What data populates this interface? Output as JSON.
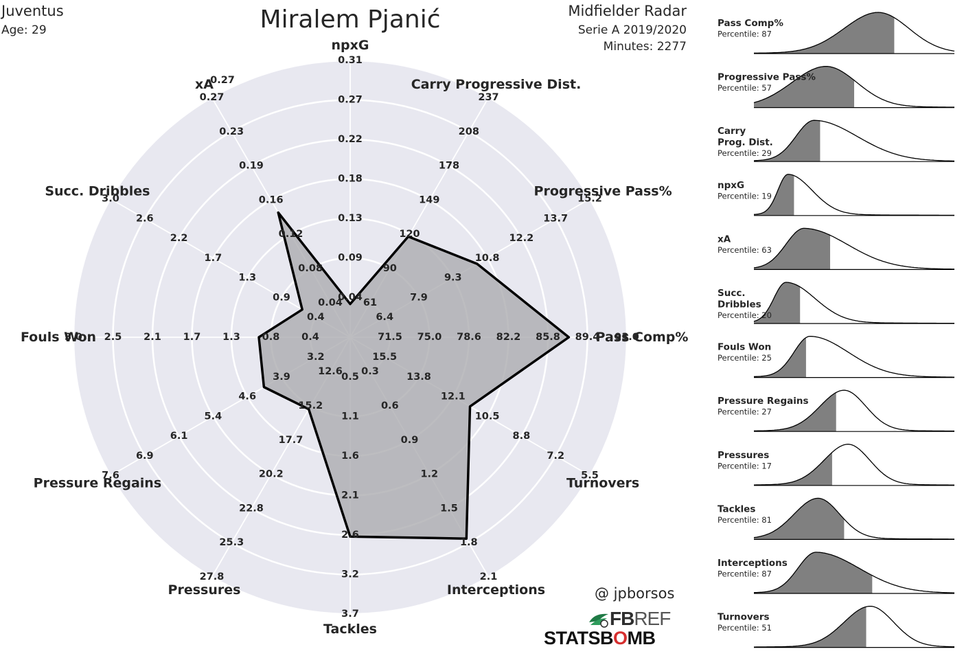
{
  "header": {
    "club": "Juventus",
    "age": "Age: 29",
    "player": "Miralem Pjanić",
    "radar_title": "Midfielder Radar",
    "competition": "Serie A 2019/2020",
    "minutes": "Minutes: 2277"
  },
  "credits": {
    "handle": "@ jpborsos",
    "fbref_bold": "FB",
    "fbref_light": "REF",
    "statsbomb_a": "STATSB",
    "statsbomb_o": "O",
    "statsbomb_b": "MB"
  },
  "colors": {
    "radar_bg": "#e8e8f0",
    "grid": "#ffffff",
    "polygon_fill": "#aaaaae",
    "polygon_stroke": "#000000",
    "kde_fill": "#808080",
    "kde_line": "#000000"
  },
  "chart_data": [
    {
      "type": "radar",
      "title": "Miralem Pjanić",
      "axes": [
        {
          "name": "npxG",
          "ticks": [
            "0.04",
            "0.09",
            "0.13",
            "0.18",
            "0.22",
            "0.27",
            "0.31"
          ],
          "value_fraction": 0.12
        },
        {
          "name": "Carry Progressive Dist.",
          "ticks": [
            "61",
            "90",
            "120",
            "149",
            "178",
            "208",
            "237"
          ],
          "value_fraction": 0.42
        },
        {
          "name": "Progressive Pass%",
          "ticks": [
            "6.4",
            "7.9",
            "9.3",
            "10.8",
            "12.2",
            "13.7",
            "15.2"
          ],
          "value_fraction": 0.53
        },
        {
          "name": "Pass Comp%",
          "ticks": [
            "71.5",
            "75.0",
            "78.6",
            "82.2",
            "85.8",
            "89.4",
            "93.0"
          ],
          "value_fraction": 0.79
        },
        {
          "name": "Turnovers",
          "ticks": [
            "15.5",
            "13.8",
            "12.1",
            "10.5",
            "8.8",
            "7.2",
            "5.5"
          ],
          "value_fraction": 0.5
        },
        {
          "name": "Interceptions",
          "ticks": [
            "0.3",
            "0.6",
            "0.9",
            "1.2",
            "1.5",
            "1.8",
            "2.1"
          ],
          "value_fraction": 0.84
        },
        {
          "name": "Tackles",
          "ticks": [
            "0.5",
            "1.1",
            "1.6",
            "2.1",
            "2.6",
            "3.2",
            "3.7"
          ],
          "value_fraction": 0.72
        },
        {
          "name": "Pressures",
          "ticks": [
            "12.6",
            "15.2",
            "17.7",
            "20.2",
            "22.8",
            "25.3",
            "27.8"
          ],
          "value_fraction": 0.3
        },
        {
          "name": "Pressure Regains",
          "ticks": [
            "3.2",
            "3.9",
            "4.6",
            "5.4",
            "6.1",
            "6.9",
            "7.6"
          ],
          "value_fraction": 0.36
        },
        {
          "name": "Fouls Won",
          "ticks": [
            "0.4",
            "0.8",
            "1.3",
            "1.7",
            "2.1",
            "2.5",
            "3.0"
          ],
          "value_fraction": 0.33
        },
        {
          "name": "Succ. Dribbles",
          "ticks": [
            "0.4",
            "0.9",
            "1.3",
            "1.7",
            "2.2",
            "2.6",
            "3.0"
          ],
          "value_fraction": 0.2
        },
        {
          "name": "xA",
          "ticks": [
            "0.04",
            "0.08",
            "0.12",
            "0.16",
            "0.19",
            "0.23",
            "0.27"
          ],
          "value_fraction": 0.52
        }
      ],
      "axis_label_extra": "0.27"
    },
    {
      "type": "area",
      "panels": [
        {
          "label": [
            "Pass Comp%"
          ],
          "percentile": "Percentile: 87",
          "pct": 87,
          "peak": 0.62,
          "w": 0.17,
          "shape": "sym",
          "cut": 0.7
        },
        {
          "label": [
            "Progressive Pass%"
          ],
          "percentile": "Percentile: 57",
          "pct": 57,
          "peak": 0.36,
          "w": 0.17,
          "shape": "sym",
          "cut": 0.5
        },
        {
          "label": [
            "Carry",
            "Prog. Dist."
          ],
          "percentile": "Percentile: 29",
          "pct": 29,
          "peak": 0.3,
          "w": 0.09,
          "shape": "right",
          "cut": 0.33
        },
        {
          "label": [
            "npxG"
          ],
          "percentile": "Percentile: 19",
          "pct": 19,
          "peak": 0.17,
          "w": 0.05,
          "shape": "right",
          "cut": 0.2
        },
        {
          "label": [
            "xA"
          ],
          "percentile": "Percentile: 63",
          "pct": 63,
          "peak": 0.25,
          "w": 0.09,
          "shape": "right",
          "cut": 0.38
        },
        {
          "label": [
            "Succ.",
            "Dribbles"
          ],
          "percentile": "Percentile: 20",
          "pct": 20,
          "peak": 0.16,
          "w": 0.06,
          "shape": "right",
          "cut": 0.23
        },
        {
          "label": [
            "Fouls Won"
          ],
          "percentile": "Percentile: 25",
          "pct": 25,
          "peak": 0.28,
          "w": 0.08,
          "shape": "right",
          "cut": 0.26
        },
        {
          "label": [
            "Pressure Regains"
          ],
          "percentile": "Percentile: 27",
          "pct": 27,
          "peak": 0.45,
          "w": 0.12,
          "shape": "sym",
          "cut": 0.41
        },
        {
          "label": [
            "Pressures"
          ],
          "percentile": "Percentile: 17",
          "pct": 17,
          "peak": 0.47,
          "w": 0.12,
          "shape": "sym",
          "cut": 0.39
        },
        {
          "label": [
            "Tackles"
          ],
          "percentile": "Percentile: 81",
          "pct": 81,
          "peak": 0.32,
          "w": 0.12,
          "shape": "sym",
          "cut": 0.45
        },
        {
          "label": [
            "Interceptions"
          ],
          "percentile": "Percentile: 87",
          "pct": 87,
          "peak": 0.31,
          "w": 0.09,
          "shape": "right",
          "cut": 0.59
        },
        {
          "label": [
            "Turnovers"
          ],
          "percentile": "Percentile: 51",
          "pct": 51,
          "peak": 0.58,
          "w": 0.13,
          "shape": "sym",
          "cut": 0.56
        }
      ]
    }
  ]
}
